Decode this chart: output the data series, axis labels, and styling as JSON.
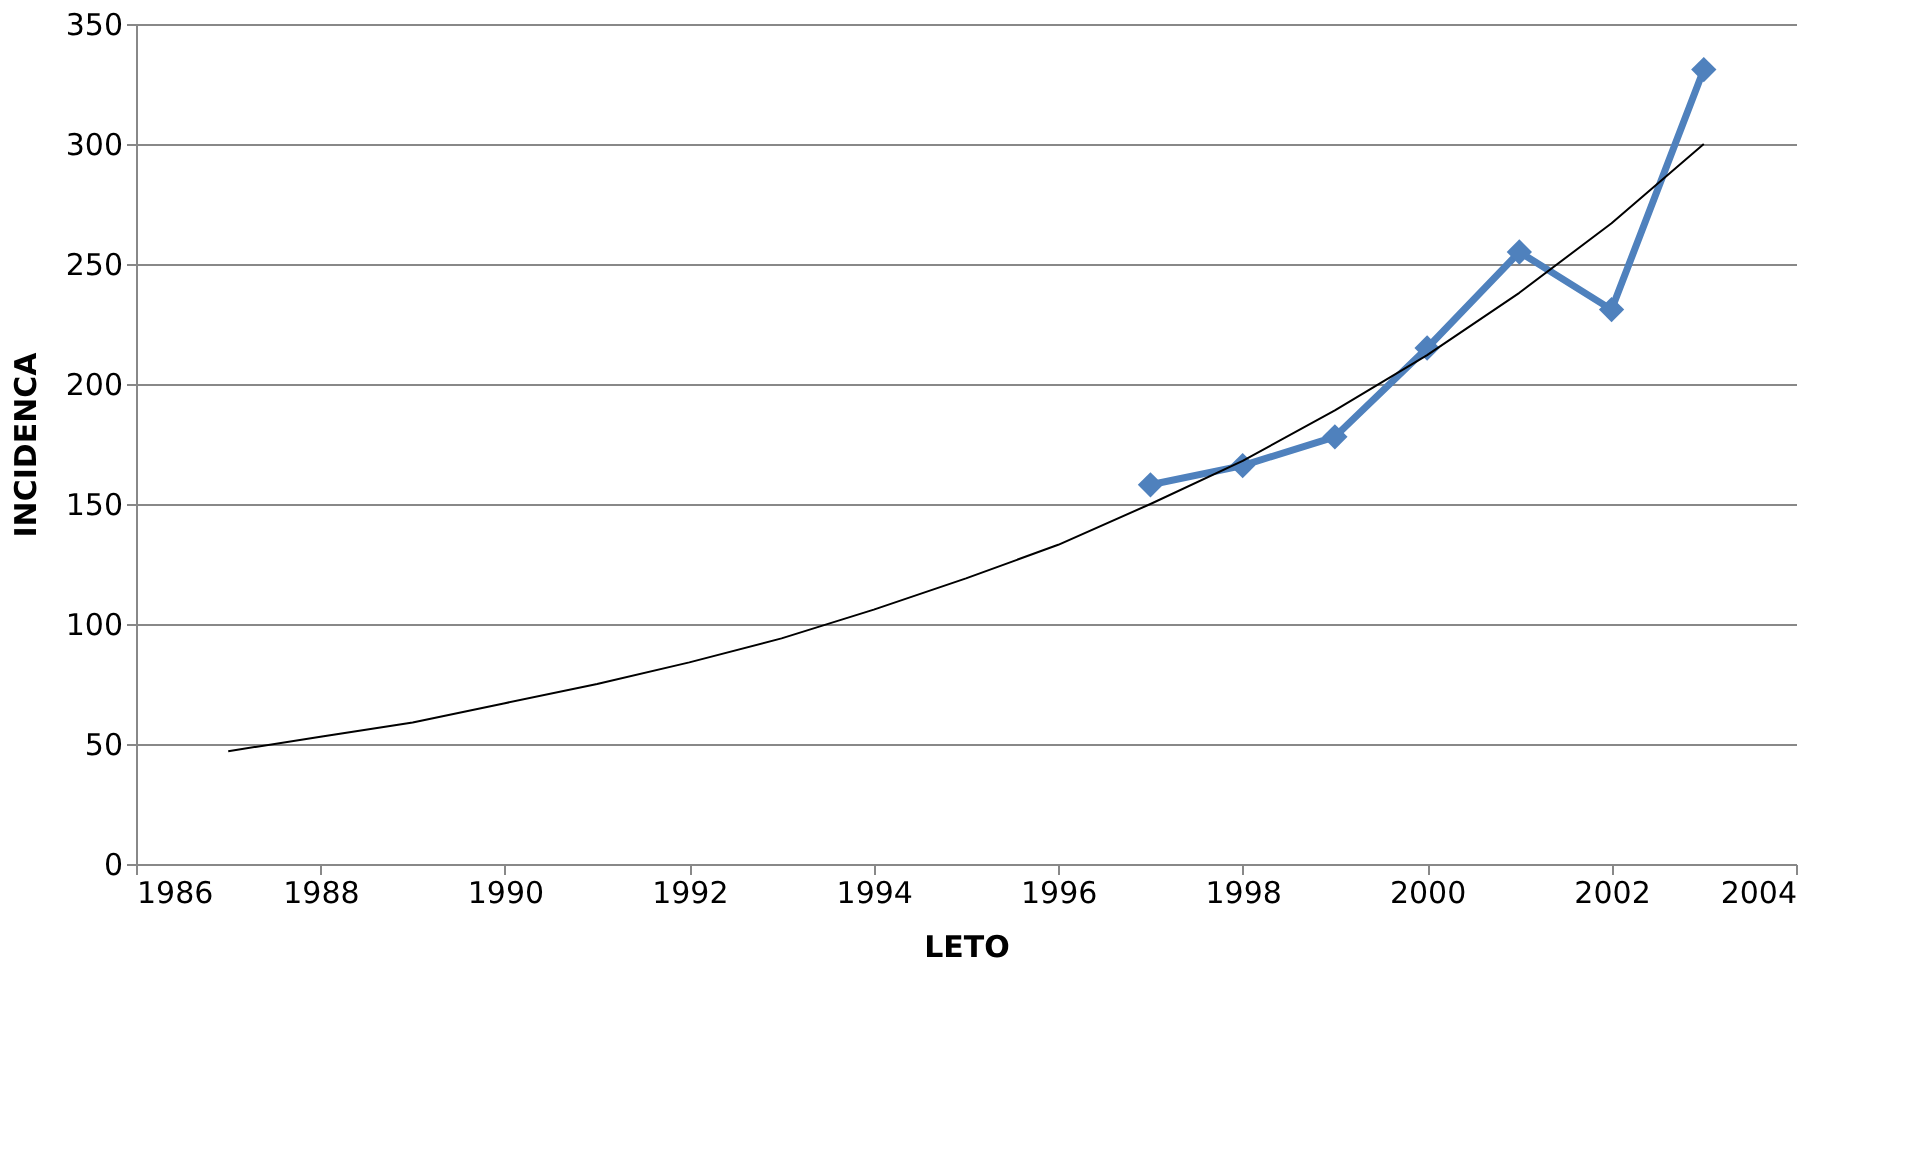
{
  "chart_data": {
    "type": "line",
    "xlabel": "LETO",
    "ylabel": "INCIDENCA",
    "xlim": [
      1986,
      2004
    ],
    "xticks": [
      1986,
      1988,
      1990,
      1992,
      1994,
      1996,
      1998,
      2000,
      2002,
      2004
    ],
    "ylim": [
      0,
      350
    ],
    "yticks": [
      0,
      50,
      100,
      150,
      200,
      250,
      300,
      350
    ],
    "grid": "y",
    "series": [
      {
        "color": "#4f81bd",
        "marker": "diamond",
        "line_style": "solid",
        "x": [
          1997,
          1998,
          1999,
          2000,
          2001,
          2002,
          2003
        ],
        "values": [
          158,
          166,
          178,
          215,
          255,
          231,
          331
        ]
      },
      {
        "color": "#000000",
        "marker": "none",
        "line_style": "solid",
        "x": [
          1987,
          1988,
          1989,
          1990,
          1991,
          1992,
          1993,
          1994,
          1995,
          1996,
          1997,
          1998,
          1999,
          2000,
          2001,
          2002,
          2003
        ],
        "values": [
          47,
          53,
          59,
          67,
          75,
          84,
          94,
          106,
          119,
          133,
          150,
          168,
          189,
          212,
          238,
          267,
          300
        ]
      }
    ]
  }
}
